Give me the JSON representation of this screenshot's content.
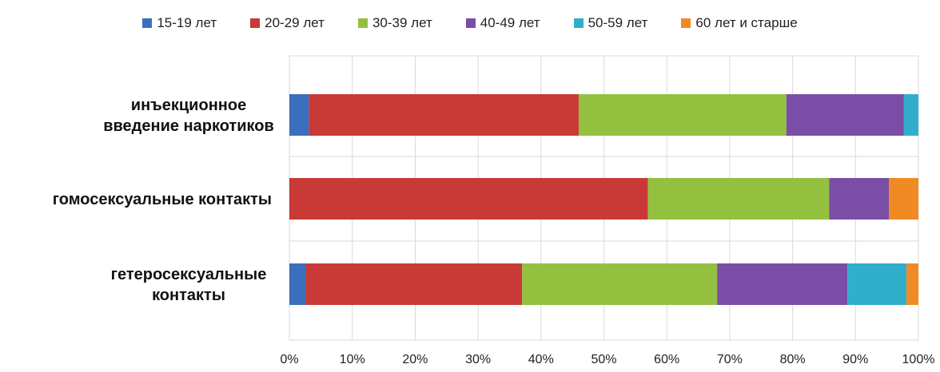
{
  "chart_data": {
    "type": "bar",
    "orientation": "horizontal",
    "stacked": "percent",
    "title": "",
    "xlabel": "",
    "ylabel": "",
    "xlim": [
      0,
      100
    ],
    "x_ticks": [
      "0%",
      "10%",
      "20%",
      "30%",
      "40%",
      "50%",
      "60%",
      "70%",
      "80%",
      "90%",
      "100%"
    ],
    "grid": true,
    "legend": "top",
    "categories": [
      [
        "инъекционное",
        "введение наркотиков"
      ],
      [
        "гомосексуальные контакты"
      ],
      [
        "гетеросексуальные",
        "контакты"
      ]
    ],
    "series": [
      {
        "name": "15-19 лет",
        "color": "#3a6fbf",
        "values": [
          3.1,
          0.0,
          2.6
        ]
      },
      {
        "name": "20-29 лет",
        "color": "#c93a36",
        "values": [
          42.9,
          57.0,
          34.4
        ]
      },
      {
        "name": "30-39 лет",
        "color": "#93c13f",
        "values": [
          33.0,
          28.8,
          31.0
        ]
      },
      {
        "name": "40-49 лет",
        "color": "#7a4ea6",
        "values": [
          18.7,
          9.5,
          20.7
        ]
      },
      {
        "name": "50-59 лет",
        "color": "#31aecb",
        "values": [
          2.3,
          0.0,
          9.4
        ]
      },
      {
        "name": "60 лет и старше",
        "color": "#f08a25",
        "values": [
          0.0,
          4.7,
          1.9
        ]
      }
    ]
  }
}
